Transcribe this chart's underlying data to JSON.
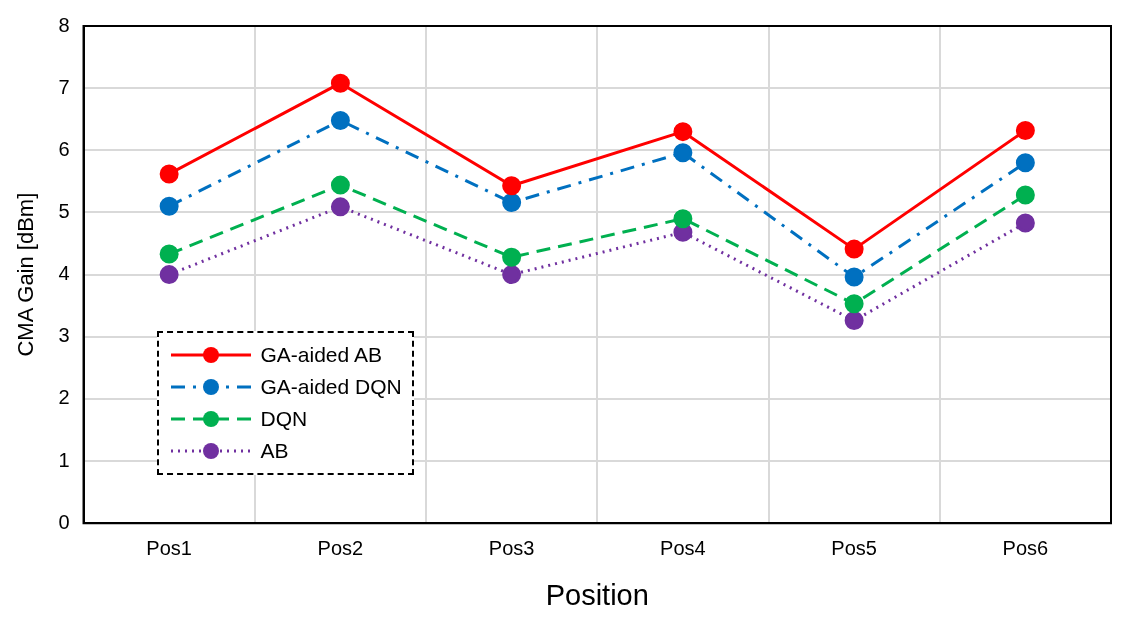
{
  "chart_data": {
    "type": "line",
    "xlabel": "Position",
    "ylabel": "CMA Gain [dBm]",
    "categories": [
      "Pos1",
      "Pos2",
      "Pos3",
      "Pos4",
      "Pos5",
      "Pos6"
    ],
    "ylim": [
      0,
      8
    ],
    "yticks": [
      0,
      1,
      2,
      3,
      4,
      5,
      6,
      7,
      8
    ],
    "grid": true,
    "legend": "bottom left",
    "marker": "circle",
    "series": [
      {
        "name": "GA-aided AB",
        "color": "#ff0000",
        "line_style": "solid",
        "values": [
          5.62,
          7.08,
          5.43,
          6.3,
          4.41,
          6.32
        ]
      },
      {
        "name": "GA-aided DQN",
        "color": "#0070c0",
        "line_style": "dashdot",
        "values": [
          5.1,
          6.48,
          5.16,
          5.96,
          3.96,
          5.8
        ]
      },
      {
        "name": "DQN",
        "color": "#00b050",
        "line_style": "dashed",
        "values": [
          4.33,
          5.44,
          4.28,
          4.9,
          3.53,
          5.28
        ]
      },
      {
        "name": "AB",
        "color": "#7030a0",
        "line_style": "dotted",
        "values": [
          4.0,
          5.09,
          4.0,
          4.68,
          3.26,
          4.83
        ]
      }
    ]
  }
}
